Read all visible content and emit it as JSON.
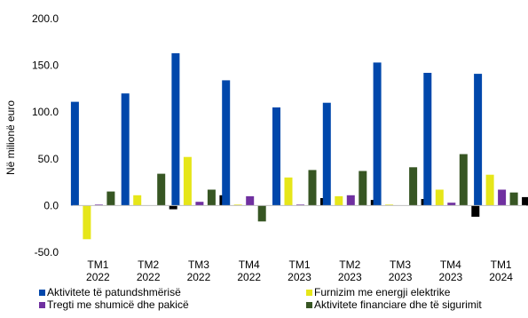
{
  "chart_data": {
    "type": "bar",
    "title": "",
    "xlabel": "",
    "ylabel": "Në milionë euro",
    "ylim": [
      -50,
      200
    ],
    "yticks": [
      "200.0",
      "150.0",
      "100.0",
      "50.0",
      "0.0",
      "-50.0"
    ],
    "categories": [
      [
        "TM1",
        "2022"
      ],
      [
        "TM2",
        "2022"
      ],
      [
        "TM3",
        "2022"
      ],
      [
        "TM4",
        "2022"
      ],
      [
        "TM1",
        "2023"
      ],
      [
        "TM2",
        "2023"
      ],
      [
        "TM3",
        "2023"
      ],
      [
        "TM4",
        "2023"
      ],
      [
        "TM1",
        "2024"
      ]
    ],
    "series": [
      {
        "name": "Aktivitete të patundshmërisë",
        "color": "#0047AB",
        "values": [
          111,
          120,
          163,
          134,
          105,
          110,
          153,
          142,
          141
        ]
      },
      {
        "name": "Furnizim me energji elektrike",
        "color": "#E6E619",
        "values": [
          -36,
          11,
          52,
          1,
          30,
          10,
          1,
          17,
          33
        ]
      },
      {
        "name": "Tregti me shumicë dhe pakicë",
        "color": "#7030A0",
        "values": [
          1,
          0,
          4,
          10,
          1,
          11,
          0,
          3,
          17
        ]
      },
      {
        "name": "Aktivitete financiare dhe të sigurimit",
        "color": "#375623",
        "values": [
          15,
          34,
          17,
          -17,
          38,
          37,
          41,
          55,
          14
        ]
      },
      {
        "name": "",
        "color": "#000000",
        "values": [
          0,
          -4,
          11,
          0,
          8,
          6,
          7,
          -12,
          9
        ]
      }
    ],
    "legend": "bottom",
    "grid": false
  }
}
